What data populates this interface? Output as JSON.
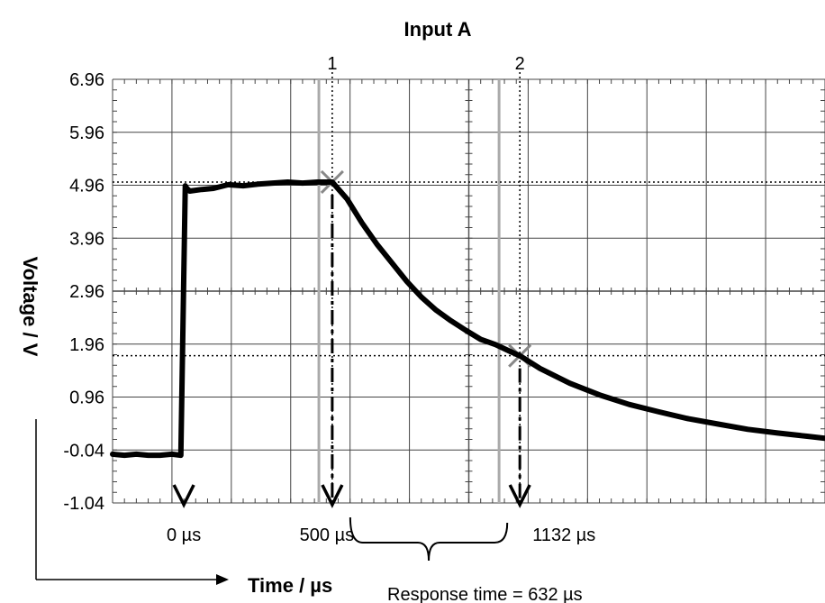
{
  "chart_data": {
    "type": "line",
    "title": "Input A",
    "xlabel": "Time / µs",
    "ylabel": "Voltage / V",
    "ylim": [
      -1.04,
      6.96
    ],
    "xlim": [
      -240,
      2160
    ],
    "y_ticks": [
      "6.96",
      "5.96",
      "4.96",
      "3.96",
      "2.96",
      "1.96",
      "0.96",
      "-0.04",
      "-1.04"
    ],
    "x_markers": [
      {
        "x": 0,
        "label": "0 µs"
      },
      {
        "x": 500,
        "label": "500 µs"
      },
      {
        "x": 1132,
        "label": "1132 µs"
      }
    ],
    "cursors": [
      {
        "label": "1",
        "x": 500,
        "y": 5.02
      },
      {
        "label": "2",
        "x": 1132,
        "y": 1.74
      }
    ],
    "annotation": "Response time = 632 µs",
    "grid": true,
    "series": [
      {
        "x": [
          -240,
          -200,
          -160,
          -120,
          -80,
          -40,
          -10,
          5,
          10,
          20,
          60,
          100,
          150,
          200,
          250,
          300,
          350,
          400,
          450,
          500,
          550,
          600,
          650,
          700,
          750,
          800,
          850,
          900,
          950,
          1000,
          1050,
          1100,
          1132,
          1200,
          1300,
          1400,
          1500,
          1600,
          1700,
          1800,
          1900,
          2000,
          2100,
          2160
        ],
        "y": [
          -0.12,
          -0.14,
          -0.12,
          -0.14,
          -0.14,
          -0.12,
          -0.14,
          4.95,
          4.9,
          4.85,
          4.88,
          4.9,
          4.97,
          4.95,
          4.98,
          5.0,
          5.02,
          5.0,
          5.02,
          5.02,
          4.7,
          4.25,
          3.85,
          3.5,
          3.15,
          2.85,
          2.6,
          2.4,
          2.22,
          2.05,
          1.95,
          1.82,
          1.74,
          1.5,
          1.22,
          1.0,
          0.82,
          0.68,
          0.55,
          0.45,
          0.35,
          0.28,
          0.22,
          0.18
        ]
      }
    ]
  }
}
